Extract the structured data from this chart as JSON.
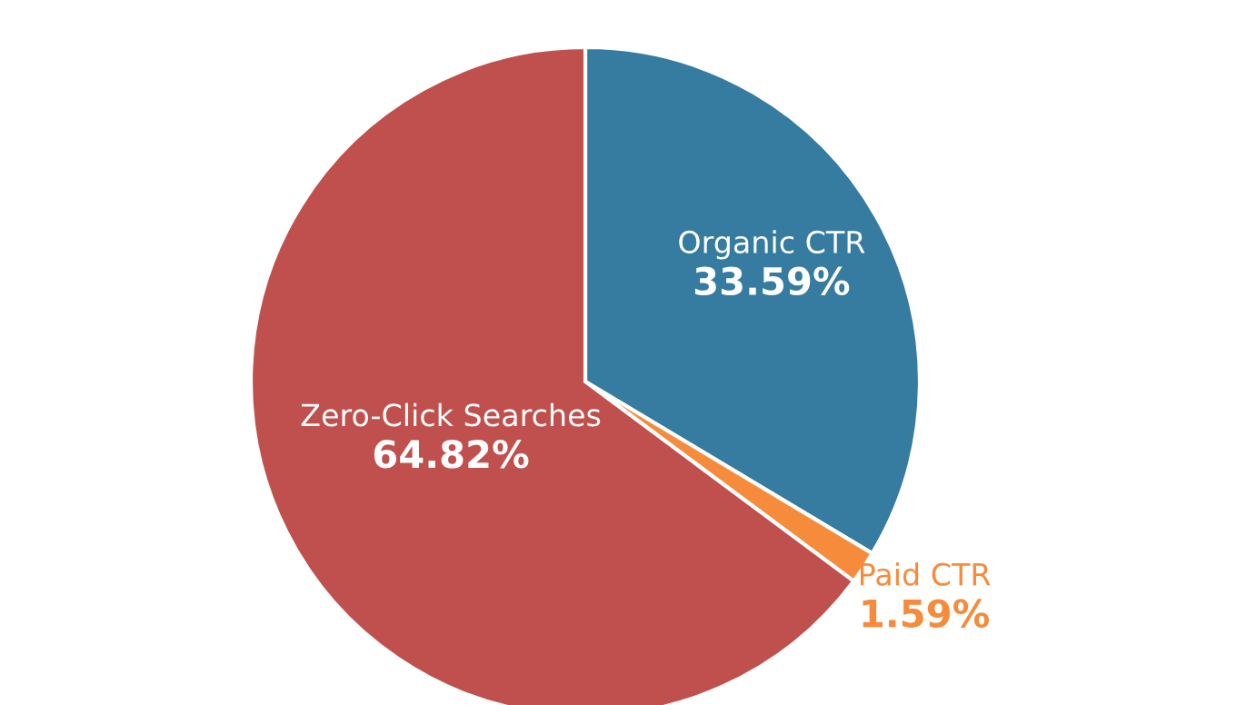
{
  "chart_data": {
    "type": "pie",
    "categories": [
      "Organic CTR",
      "Paid CTR",
      "Zero-Click Searches"
    ],
    "values": [
      33.59,
      1.59,
      64.82
    ],
    "value_labels": [
      "33.59%",
      "1.59%",
      "64.82%"
    ],
    "colors": [
      "#367ba0",
      "#f68b3c",
      "#c0504d"
    ],
    "legend": false
  }
}
